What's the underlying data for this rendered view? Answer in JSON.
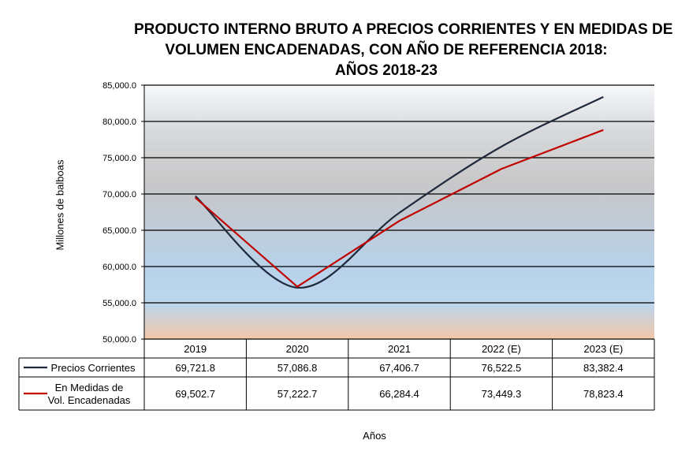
{
  "chart_data": {
    "type": "line",
    "title_lines": [
      "PRODUCTO INTERNO BRUTO A PRECIOS CORRIENTES Y  EN MEDIDAS DE",
      "VOLUMEN ENCADENADAS,  CON AÑO DE REFERENCIA 2018:",
      "AÑOS 2018-23"
    ],
    "ylabel": "Millones de balboas",
    "xlabel": "Años",
    "categories": [
      "2019",
      "2020",
      "2021",
      "2022 (E)",
      "2023 (E)"
    ],
    "ylim": [
      50000,
      85000
    ],
    "yticks": [
      50000,
      55000,
      60000,
      65000,
      70000,
      75000,
      80000,
      85000
    ],
    "ytick_labels": [
      "50,000.0",
      "55,000.0",
      "60,000.0",
      "65,000.0",
      "70,000.0",
      "75,000.0",
      "80,000.0",
      "85,000.0"
    ],
    "grid": true,
    "series": [
      {
        "name": "Precios Corrientes",
        "legend_lines": [
          "Precios Corrientes"
        ],
        "color": "#1f2a3d",
        "smooth": true,
        "values": [
          69721.8,
          57086.8,
          67406.7,
          76522.5,
          83382.4
        ],
        "labels": [
          "69,721.8",
          "57,086.8",
          "67,406.7",
          "76,522.5",
          "83,382.4"
        ]
      },
      {
        "name": "En Medidas de Vol. Encadenadas",
        "legend_lines": [
          "En Medidas de",
          "Vol. Encadenadas"
        ],
        "color": "#c00000",
        "smooth": false,
        "values": [
          69502.7,
          57222.7,
          66284.4,
          73449.3,
          78823.4
        ],
        "labels": [
          "69,502.7",
          "57,222.7",
          "66,284.4",
          "73,449.3",
          "78,823.4"
        ]
      }
    ]
  }
}
